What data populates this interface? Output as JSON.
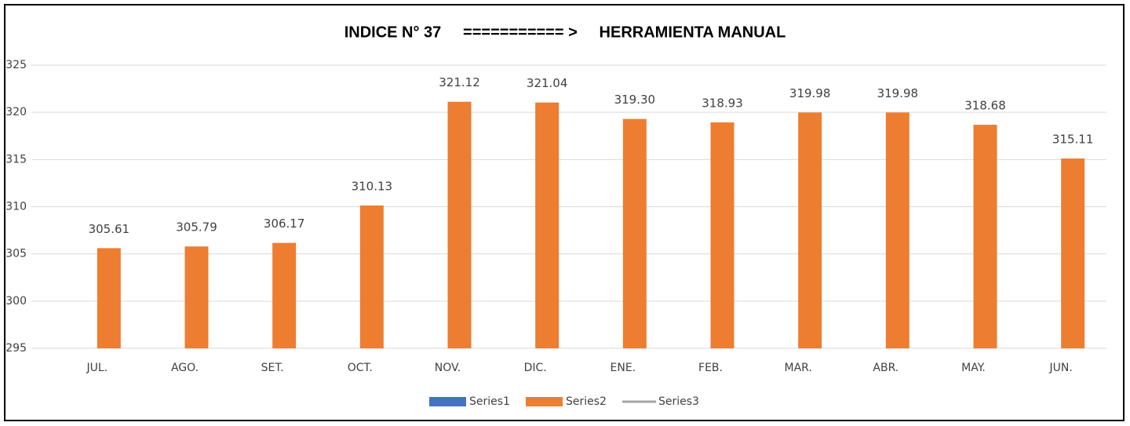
{
  "chart_data": {
    "type": "bar",
    "title": "INDICE N° 37     =========== >     HERRAMIENTA MANUAL",
    "categories": [
      "JUL.",
      "AGO.",
      "SET.",
      "OCT.",
      "NOV.",
      "DIC.",
      "ENE.",
      "FEB.",
      "MAR.",
      "ABR.",
      "MAY.",
      "JUN."
    ],
    "series": [
      {
        "name": "Series1",
        "color": "#4472c4",
        "values": [
          null,
          null,
          null,
          null,
          null,
          null,
          null,
          null,
          null,
          null,
          null,
          null
        ]
      },
      {
        "name": "Series2",
        "color": "#ed7d31",
        "values": [
          305.61,
          305.79,
          306.17,
          310.13,
          321.12,
          321.04,
          319.3,
          318.93,
          319.98,
          319.98,
          318.68,
          315.11
        ],
        "value_labels": [
          "305.61",
          "305.79",
          "306.17",
          "310.13",
          "321.12",
          "321.04",
          "319.30",
          "318.93",
          "319.98",
          "319.98",
          "318.68",
          "315.11"
        ]
      },
      {
        "name": "Series3",
        "color": "#a5a5a5",
        "type": "line",
        "values": [
          null,
          null,
          null,
          null,
          null,
          null,
          null,
          null,
          null,
          null,
          null,
          null
        ]
      }
    ],
    "ylim": [
      295,
      325
    ],
    "yticks": [
      295,
      300,
      305,
      310,
      315,
      320,
      325
    ],
    "grid": true,
    "legend": "bottom"
  }
}
